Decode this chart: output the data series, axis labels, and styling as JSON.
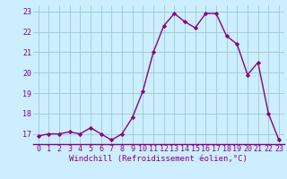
{
  "x": [
    0,
    1,
    2,
    3,
    4,
    5,
    6,
    7,
    8,
    9,
    10,
    11,
    12,
    13,
    14,
    15,
    16,
    17,
    18,
    19,
    20,
    21,
    22,
    23
  ],
  "y": [
    16.9,
    17.0,
    17.0,
    17.1,
    17.0,
    17.3,
    17.0,
    16.7,
    17.0,
    17.8,
    19.1,
    21.0,
    22.3,
    22.9,
    22.5,
    22.2,
    22.9,
    22.9,
    21.8,
    21.4,
    19.9,
    20.5,
    18.0,
    16.7
  ],
  "line_color": "#880088",
  "marker": "D",
  "marker_size": 2.2,
  "bg_color": "#cceeff",
  "grid_color": "#99cccc",
  "xlabel": "Windchill (Refroidissement éolien,°C)",
  "xlabel_fontsize": 6.5,
  "ylim": [
    16.5,
    23.3
  ],
  "xlim": [
    -0.5,
    23.5
  ],
  "yticks": [
    17,
    18,
    19,
    20,
    21,
    22,
    23
  ],
  "xticks": [
    0,
    1,
    2,
    3,
    4,
    5,
    6,
    7,
    8,
    9,
    10,
    11,
    12,
    13,
    14,
    15,
    16,
    17,
    18,
    19,
    20,
    21,
    22,
    23
  ],
  "tick_fontsize": 6.0,
  "line_width": 1.0
}
